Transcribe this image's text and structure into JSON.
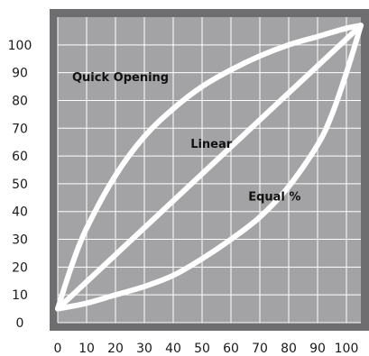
{
  "chart_data": {
    "type": "line",
    "title": "",
    "xlabel": "",
    "ylabel": "",
    "xlim": [
      0,
      105
    ],
    "ylim": [
      0,
      110
    ],
    "x_ticks": [
      0,
      10,
      20,
      30,
      40,
      50,
      60,
      70,
      80,
      90,
      100
    ],
    "y_ticks": [
      0,
      10,
      20,
      30,
      40,
      50,
      60,
      70,
      80,
      90,
      100
    ],
    "x_tick_labels": [
      "0",
      "10",
      "20",
      "30",
      "40",
      "50",
      "60",
      "70",
      "80",
      "90",
      "100"
    ],
    "y_tick_labels": [
      "0",
      "10",
      "20",
      "30",
      "40",
      "50",
      "60",
      "70",
      "80",
      "90",
      "100"
    ],
    "grid": true,
    "legend": "none",
    "series": [
      {
        "name": "Quick Opening",
        "x": [
          0,
          5,
          10,
          20,
          30,
          40,
          50,
          60,
          70,
          80,
          90,
          100,
          105
        ],
        "y": [
          5,
          21,
          34,
          53,
          67,
          77,
          85,
          91,
          96,
          100,
          103,
          106,
          107
        ]
      },
      {
        "name": "Linear",
        "x": [
          0,
          105
        ],
        "y": [
          5,
          107
        ]
      },
      {
        "name": "Equal %",
        "x": [
          0,
          10,
          20,
          30,
          40,
          50,
          60,
          70,
          80,
          90,
          95,
          100,
          105
        ],
        "y": [
          5,
          7,
          10,
          13,
          17,
          23,
          30,
          38,
          49,
          64,
          75,
          90,
          107
        ]
      }
    ],
    "annotations": [
      {
        "text": "Quick Opening",
        "x": 5,
        "y": 87
      },
      {
        "text": "Linear",
        "x": 46,
        "y": 63
      },
      {
        "text": "Equal %",
        "x": 66,
        "y": 44
      }
    ],
    "colors": {
      "plot_background": "#a3a3a5",
      "frame": "#6e6e70",
      "grid": "#ffffff",
      "line": "#ffffff",
      "text": "#111111"
    }
  }
}
